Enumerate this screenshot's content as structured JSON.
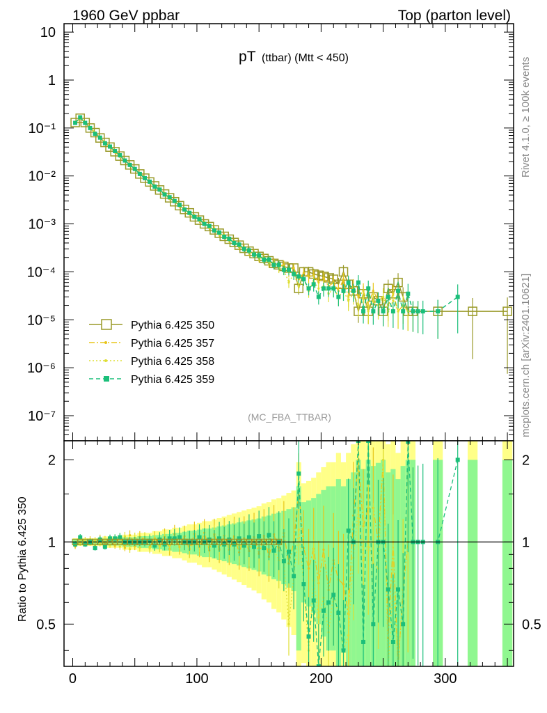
{
  "header": {
    "left": "1960 GeV ppbar",
    "right": "Top (parton level)"
  },
  "side_labels": {
    "top": "Rivet 4.1.0, ≥ 100k events",
    "bottom": "mcplots.cern.ch [arXiv:2401.10621]"
  },
  "chart_data": {
    "type": "line",
    "title_main": "pT",
    "title_sub": "(ttbar) (Mtt < 450)",
    "watermark": "(MC_FBA_TTBAR)",
    "ylabel_ratio": "Ratio to Pythia 6.425 350",
    "xlim": [
      -7,
      355
    ],
    "ylim_main": [
      3e-08,
      15
    ],
    "yscale_main": "log",
    "ylim_ratio": [
      0.35,
      2.35
    ],
    "yscale_ratio": "log",
    "x_ticks": [
      0,
      100,
      200,
      300
    ],
    "y_ticks_main": [
      "10",
      "1",
      "10⁻¹",
      "10⁻²",
      "10⁻³",
      "10⁻⁴",
      "10⁻⁵",
      "10⁻⁶",
      "10⁻⁷"
    ],
    "y_ticks_ratio": [
      "0.5",
      "1",
      "2"
    ],
    "colors": {
      "s350": "#9a9a29",
      "s357": "#e8c51a",
      "s358": "#dede33",
      "s359": "#1bbf7a",
      "band_yellow": "#ffff88",
      "band_green": "#90f790"
    },
    "legend": [
      {
        "name": "Pythia 6.425 350"
      },
      {
        "name": "Pythia 6.425 357"
      },
      {
        "name": "Pythia 6.425 358"
      },
      {
        "name": "Pythia 6.425 359"
      }
    ],
    "series_350": {
      "x": [
        2,
        6,
        10,
        14,
        18,
        22,
        26,
        30,
        34,
        38,
        42,
        46,
        50,
        54,
        58,
        62,
        66,
        70,
        74,
        78,
        82,
        86,
        90,
        94,
        98,
        102,
        106,
        110,
        114,
        118,
        122,
        126,
        130,
        134,
        138,
        142,
        146,
        150,
        154,
        158,
        162,
        166,
        170,
        174,
        178,
        182,
        186,
        190,
        194,
        198,
        202,
        206,
        210,
        214,
        218,
        222,
        226,
        230,
        234,
        238,
        242,
        246,
        250,
        254,
        258,
        262,
        266,
        270,
        274,
        294,
        322,
        350
      ],
      "y": [
        0.13,
        0.16,
        0.13,
        0.1,
        0.08,
        0.062,
        0.05,
        0.04,
        0.032,
        0.026,
        0.021,
        0.017,
        0.014,
        0.011,
        0.009,
        0.0075,
        0.0062,
        0.0051,
        0.0042,
        0.0035,
        0.0029,
        0.0024,
        0.002,
        0.0017,
        0.0014,
        0.0012,
        0.001,
        0.00088,
        0.00075,
        0.00064,
        0.00055,
        0.00048,
        0.00041,
        0.00036,
        0.00031,
        0.00027,
        0.00024,
        0.00021,
        0.00019,
        0.00017,
        0.00015,
        0.00014,
        0.00013,
        0.00012,
        0.00012,
        4.5e-05,
        0.0001,
        0.0001,
        9e-05,
        8.5e-05,
        8e-05,
        7.5e-05,
        7e-05,
        5.5e-05,
        0.0001,
        5.5e-05,
        4e-05,
        1.5e-05,
        3.5e-05,
        1.5e-05,
        3e-05,
        2.5e-05,
        1.5e-05,
        4.5e-05,
        3.5e-05,
        6e-05,
        3e-05,
        1.5e-05,
        1.5e-05,
        1.5e-05,
        1.5e-05,
        1.5e-05
      ],
      "ratio_band": [
        0.02,
        0.02,
        0.02,
        0.02,
        0.02,
        0.02,
        0.03,
        0.03,
        0.03,
        0.03,
        0.04,
        0.04,
        0.04,
        0.05,
        0.05,
        0.05,
        0.06,
        0.06,
        0.07,
        0.07,
        0.08,
        0.08,
        0.09,
        0.1,
        0.1,
        0.11,
        0.12,
        0.12,
        0.13,
        0.14,
        0.15,
        0.16,
        0.17,
        0.18,
        0.19,
        0.2,
        0.21,
        0.22,
        0.24,
        0.25,
        0.27,
        0.28,
        0.3,
        0.32,
        0.34,
        0.6,
        0.4,
        0.42,
        0.45,
        0.5,
        0.55,
        0.6,
        0.6,
        0.7,
        0.6,
        0.7,
        0.8,
        1.0,
        0.85,
        1.0,
        0.9,
        0.95,
        1.0,
        0.8,
        0.85,
        0.7,
        0.9,
        1.0,
        1.0,
        1.0,
        1.0,
        1.0
      ]
    },
    "series_357": {
      "x": [
        2,
        6,
        10,
        14,
        18,
        22,
        26,
        30,
        34,
        38,
        42,
        46,
        50,
        54,
        58,
        62,
        66,
        70,
        74,
        78,
        82,
        86,
        90,
        94,
        98,
        102,
        106,
        110,
        114,
        118,
        122,
        126,
        130,
        134,
        138,
        142,
        146,
        150,
        154,
        158,
        162,
        166,
        170,
        174,
        178,
        182,
        186,
        190,
        194,
        198,
        202,
        206,
        210,
        214,
        218,
        222,
        226,
        230,
        234,
        238,
        242,
        246,
        250,
        254,
        258,
        262,
        266,
        270
      ],
      "y": [
        0.125,
        0.165,
        0.128,
        0.102,
        0.078,
        0.064,
        0.049,
        0.041,
        0.031,
        0.027,
        0.02,
        0.018,
        0.0135,
        0.0115,
        0.0092,
        0.0072,
        0.0064,
        0.005,
        0.0044,
        0.0033,
        0.0031,
        0.0023,
        0.0021,
        0.0016,
        0.0015,
        0.00115,
        0.00108,
        0.00082,
        0.0008,
        0.0006,
        0.00058,
        0.00045,
        0.00043,
        0.00033,
        0.00032,
        0.00025,
        0.00025,
        0.00019,
        0.0002,
        0.00015,
        0.00016,
        0.00013,
        0.00014,
        0.0001,
        0.00012,
        7e-05,
        9.5e-05,
        8e-05,
        8.5e-05,
        6e-05,
        7.5e-05,
        5e-05,
        6e-05,
        4e-05,
        7e-05,
        3e-05,
        5e-05,
        3e-05,
        4e-05,
        2e-05,
        4e-05,
        2.5e-05,
        3e-05,
        2e-05,
        3.5e-05,
        1.5e-05,
        2e-05,
        1.5e-05
      ]
    },
    "series_358": {
      "x": [
        2,
        6,
        10,
        14,
        18,
        22,
        26,
        30,
        34,
        38,
        42,
        46,
        50,
        54,
        58,
        62,
        66,
        70,
        74,
        78,
        82,
        86,
        90,
        94,
        98,
        102,
        106,
        110,
        114,
        118,
        122,
        126,
        130,
        134,
        138,
        142,
        146,
        150,
        154,
        158,
        162,
        166,
        170,
        174,
        178,
        182,
        186,
        190,
        194,
        198,
        202,
        206,
        210,
        214,
        218,
        222,
        226,
        230,
        234,
        238,
        242,
        246,
        250,
        254,
        258,
        262,
        266,
        270,
        274,
        278
      ],
      "y": [
        0.128,
        0.158,
        0.132,
        0.099,
        0.081,
        0.061,
        0.051,
        0.039,
        0.033,
        0.025,
        0.022,
        0.016,
        0.0145,
        0.0105,
        0.0093,
        0.0071,
        0.0063,
        0.0049,
        0.0043,
        0.0034,
        0.003,
        0.0024,
        0.002,
        0.0016,
        0.0014,
        0.0012,
        0.00102,
        0.00085,
        0.00076,
        0.00062,
        0.00056,
        0.00046,
        0.00042,
        0.00035,
        0.0003,
        0.00026,
        0.00023,
        0.0002,
        0.00018,
        0.00016,
        0.00014,
        0.00012,
        0.00011,
        6e-05,
        9e-05,
        5e-05,
        7e-05,
        4e-05,
        6.5e-05,
        4.5e-05,
        5e-05,
        3.5e-05,
        4.5e-05,
        3e-05,
        4e-05,
        2.5e-05,
        3.5e-05,
        2e-05,
        3e-05,
        1.5e-05,
        2.5e-05,
        2e-05,
        3e-05,
        1.5e-05,
        2.5e-05,
        1.5e-05,
        2e-05,
        1.5e-05,
        1.5e-05,
        1.5e-05
      ]
    },
    "series_359": {
      "x": [
        2,
        6,
        10,
        14,
        18,
        22,
        26,
        30,
        34,
        38,
        42,
        46,
        50,
        54,
        58,
        62,
        66,
        70,
        74,
        78,
        82,
        86,
        90,
        94,
        98,
        102,
        106,
        110,
        114,
        118,
        122,
        126,
        130,
        134,
        138,
        142,
        146,
        150,
        154,
        158,
        162,
        166,
        170,
        174,
        178,
        182,
        186,
        190,
        194,
        198,
        202,
        206,
        210,
        214,
        218,
        222,
        226,
        230,
        234,
        238,
        242,
        246,
        250,
        254,
        258,
        262,
        266,
        270,
        274,
        278,
        282,
        294,
        310
      ],
      "y": [
        0.128,
        0.167,
        0.128,
        0.1,
        0.076,
        0.063,
        0.048,
        0.041,
        0.033,
        0.027,
        0.021,
        0.017,
        0.014,
        0.011,
        0.009,
        0.0076,
        0.006,
        0.0052,
        0.0041,
        0.0036,
        0.003,
        0.0025,
        0.002,
        0.0017,
        0.0014,
        0.00125,
        0.001,
        0.0009,
        0.00073,
        0.00066,
        0.00054,
        0.00049,
        0.0004,
        0.00037,
        0.0003,
        0.00028,
        0.00023,
        0.00022,
        0.00018,
        0.00018,
        0.00014,
        0.00014,
        0.00011,
        0.00011,
        9e-05,
        8e-05,
        7e-05,
        4.5e-05,
        5.5e-05,
        3e-05,
        4.5e-05,
        4.5e-05,
        4.5e-05,
        3e-05,
        4e-05,
        6e-05,
        4e-05,
        6e-05,
        1.5e-05,
        4.5e-05,
        1.5e-05,
        2.5e-05,
        1.5e-05,
        3e-05,
        1.5e-05,
        4e-05,
        1.5e-05,
        3.5e-05,
        1.5e-05,
        1.5e-05,
        1.5e-05,
        1.5e-05,
        3e-05
      ],
      "ratio": [
        0.98,
        1.04,
        0.98,
        1.0,
        0.95,
        1.02,
        0.96,
        1.03,
        1.03,
        1.04,
        1.0,
        1.0,
        1.0,
        1.0,
        1.0,
        1.01,
        0.97,
        1.02,
        0.98,
        1.03,
        1.03,
        1.04,
        1.0,
        1.0,
        1.0,
        1.04,
        1.0,
        1.02,
        0.97,
        1.03,
        0.98,
        1.02,
        0.98,
        1.03,
        0.97,
        1.04,
        0.96,
        1.05,
        0.95,
        1.06,
        0.93,
        1.0,
        0.85,
        0.92,
        0.75,
        1.78,
        0.7,
        0.45,
        0.61,
        0.35,
        0.56,
        0.6,
        0.64,
        0.55,
        0.4,
        1.1,
        1.0,
        4.0,
        0.43,
        3.0,
        0.5,
        1.0,
        1.0,
        0.67,
        0.43,
        0.67,
        0.5,
        2.33,
        1.0,
        1.0,
        1.0,
        1.0,
        2.0
      ]
    }
  }
}
